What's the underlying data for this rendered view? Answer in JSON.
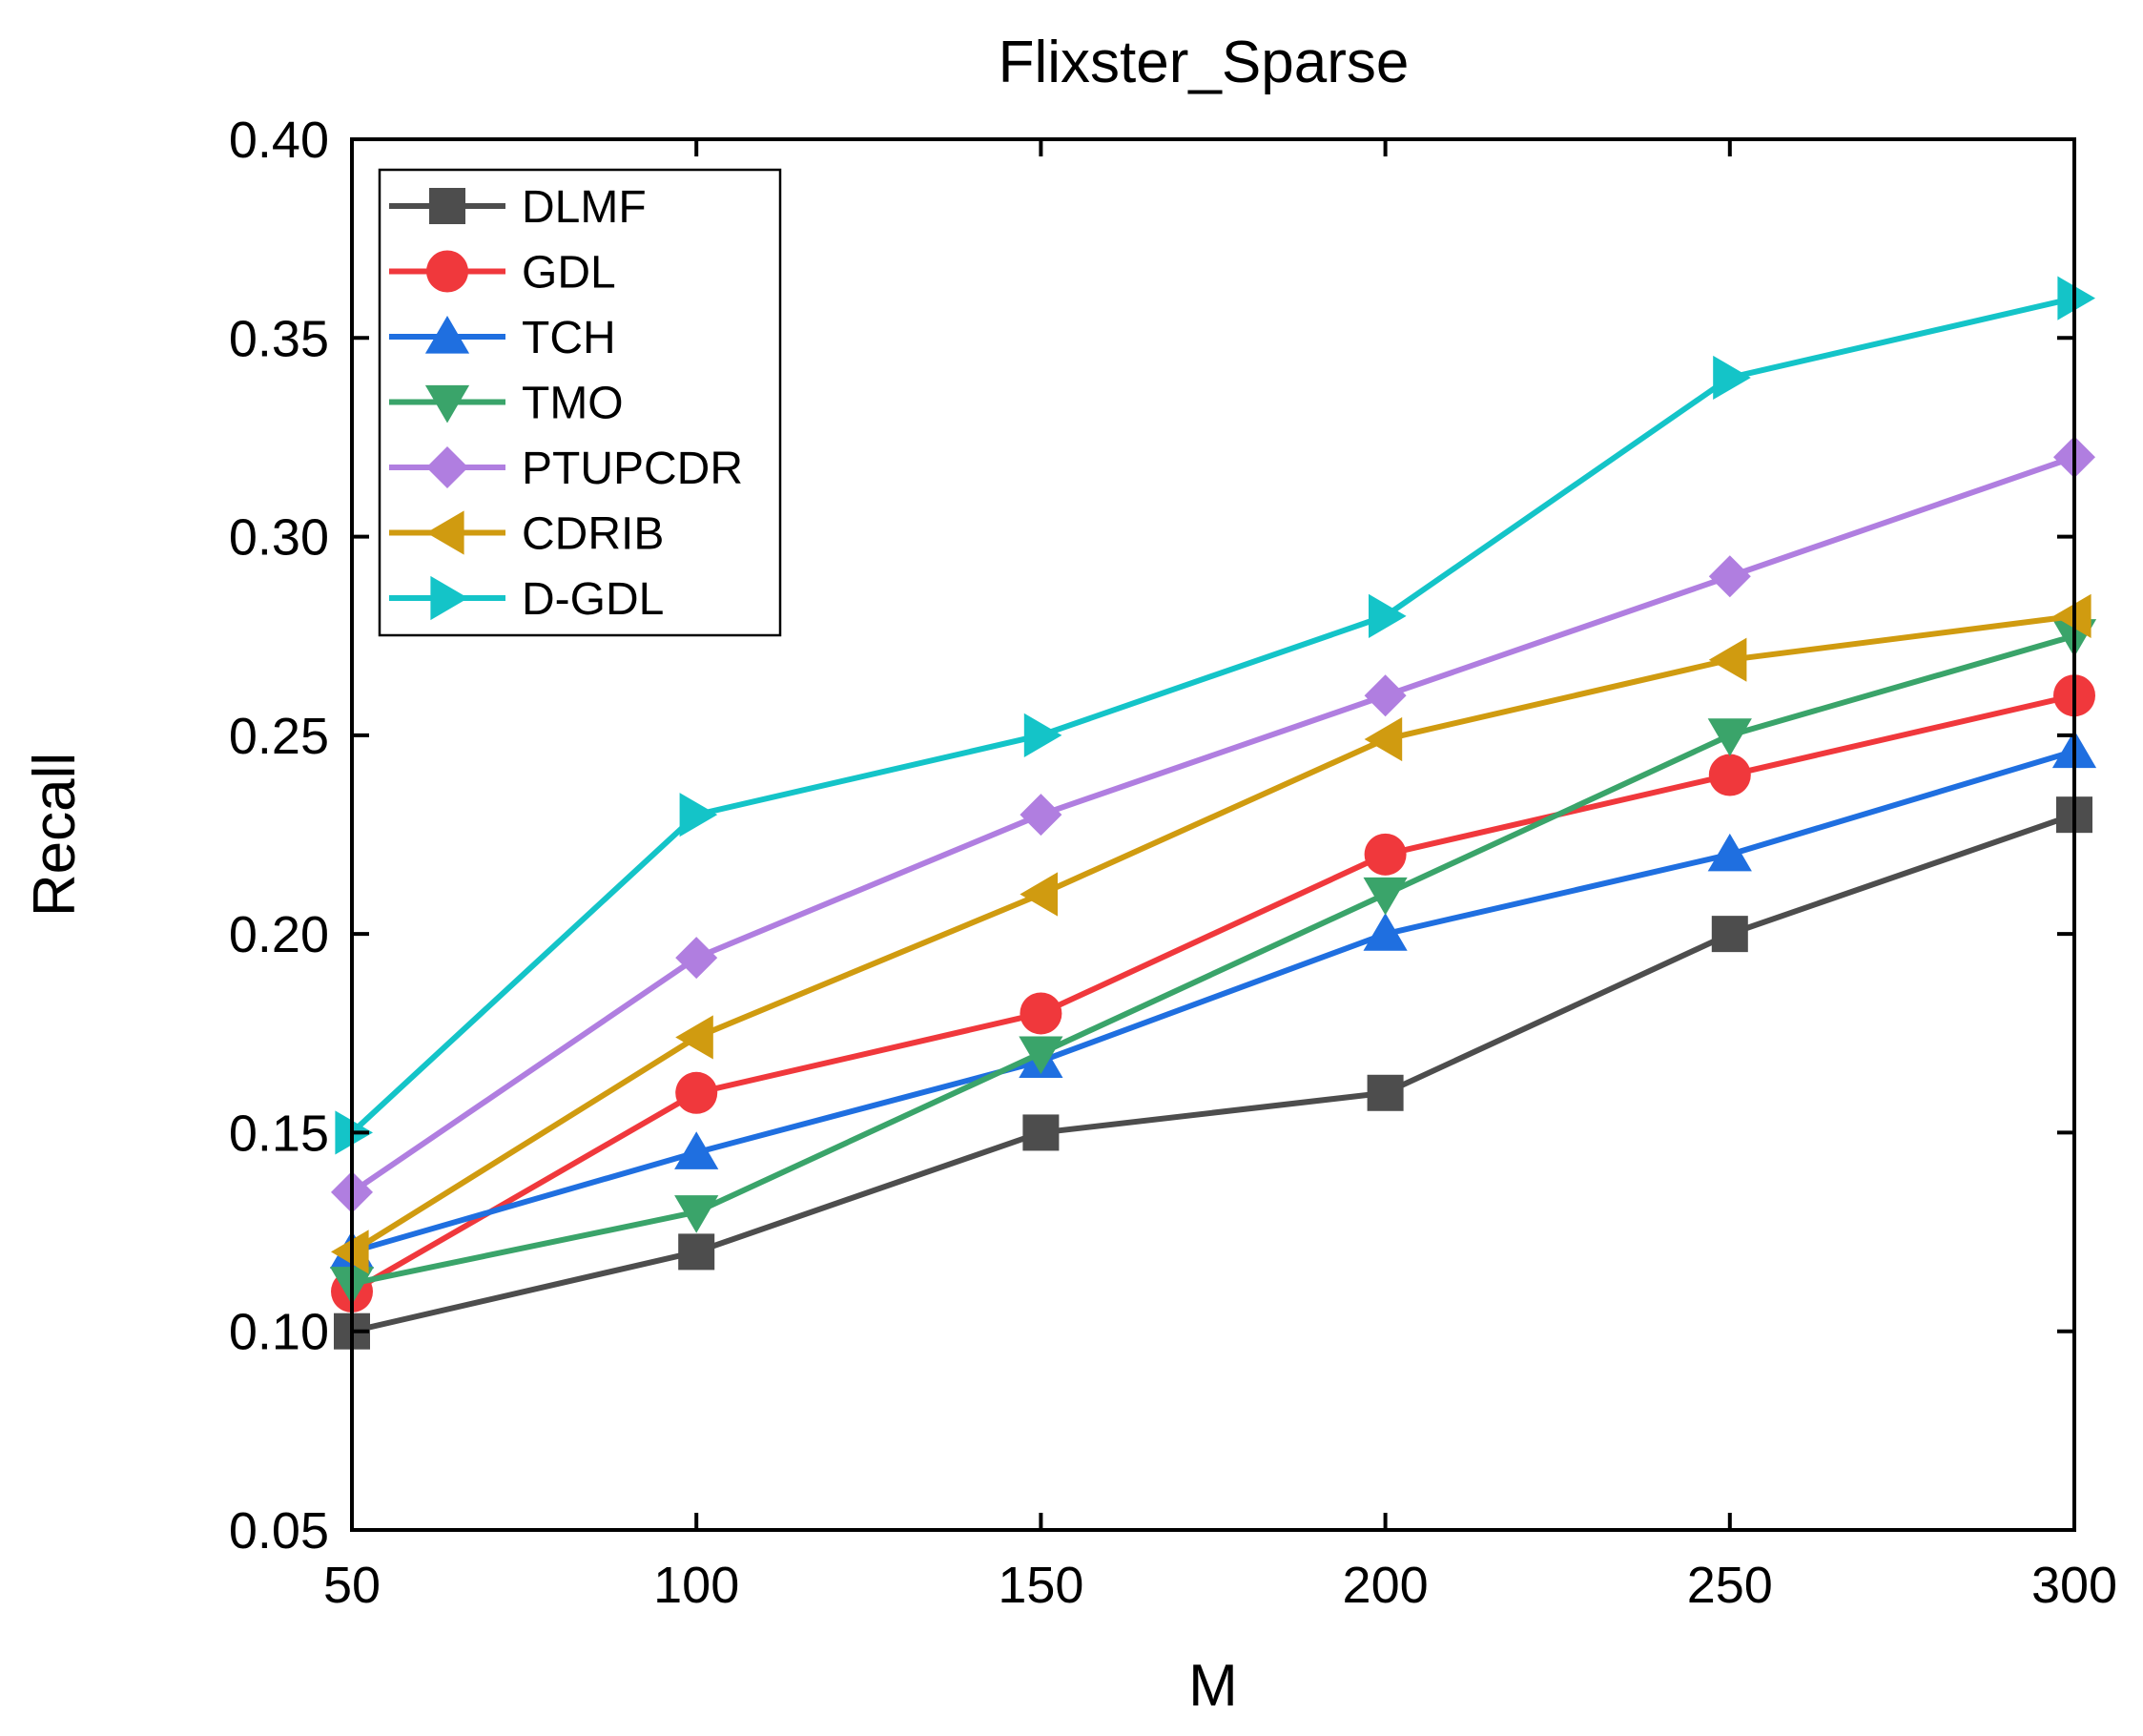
{
  "chart_data": {
    "type": "line",
    "title": "Flixster_Sparse",
    "xlabel": "M",
    "ylabel": "Recall",
    "x": [
      50,
      100,
      150,
      200,
      250,
      300
    ],
    "xlim": [
      50,
      300
    ],
    "ylim": [
      0.05,
      0.4
    ],
    "x_ticks": [
      "50",
      "100",
      "150",
      "200",
      "250",
      "300"
    ],
    "y_ticks": [
      "0.05",
      "0.10",
      "0.15",
      "0.20",
      "0.25",
      "0.30",
      "0.35",
      "0.40"
    ],
    "grid": false,
    "legend_position": "top-left",
    "series": [
      {
        "name": "DLMF",
        "color": "#4d4d4d",
        "marker": "square",
        "values": [
          0.1,
          0.12,
          0.15,
          0.16,
          0.2,
          0.23
        ]
      },
      {
        "name": "GDL",
        "color": "#f0383c",
        "marker": "circle",
        "values": [
          0.11,
          0.16,
          0.18,
          0.22,
          0.24,
          0.26
        ]
      },
      {
        "name": "TCH",
        "color": "#1f6fe0",
        "marker": "triangle-up",
        "values": [
          0.12,
          0.145,
          0.168,
          0.2,
          0.22,
          0.246
        ]
      },
      {
        "name": "TMO",
        "color": "#3aa46a",
        "marker": "triangle-down",
        "values": [
          0.112,
          0.13,
          0.17,
          0.21,
          0.25,
          0.275
        ]
      },
      {
        "name": "PTUPCDR",
        "color": "#b07ee0",
        "marker": "diamond",
        "values": [
          0.135,
          0.194,
          0.23,
          0.26,
          0.29,
          0.32
        ]
      },
      {
        "name": "CDRIB",
        "color": "#d09b10",
        "marker": "triangle-left",
        "values": [
          0.12,
          0.174,
          0.21,
          0.249,
          0.269,
          0.28
        ]
      },
      {
        "name": "D-GDL",
        "color": "#14c4c8",
        "marker": "triangle-right",
        "values": [
          0.15,
          0.23,
          0.25,
          0.28,
          0.34,
          0.36
        ]
      }
    ]
  }
}
